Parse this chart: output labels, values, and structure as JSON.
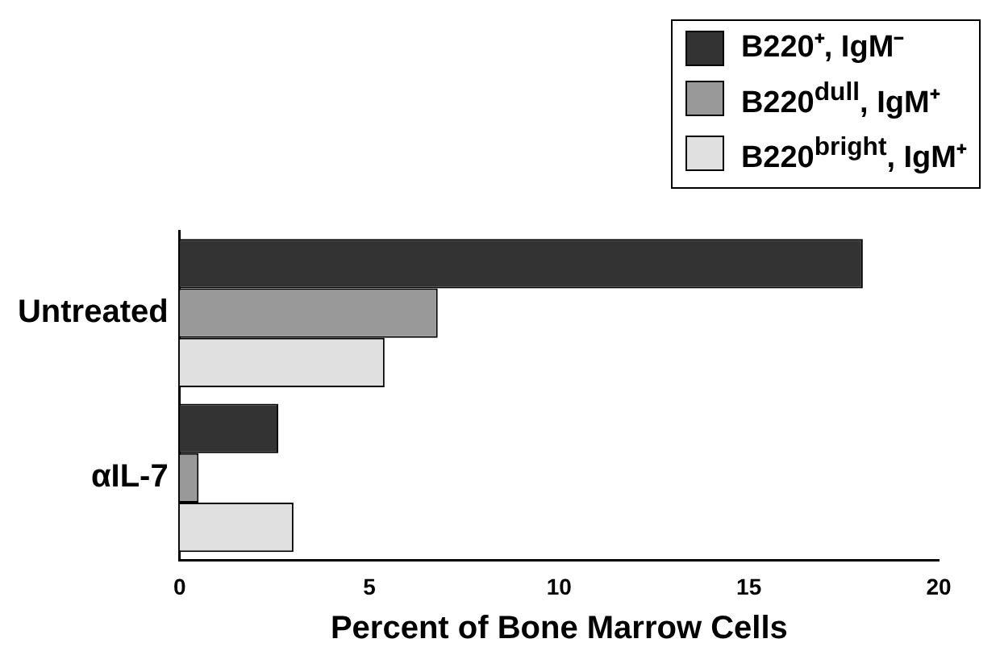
{
  "chart_data": {
    "type": "bar",
    "orientation": "horizontal",
    "xlabel": "Percent of Bone Marrow Cells",
    "categories": [
      "Untreated",
      "αIL-7"
    ],
    "series": [
      {
        "name": "B220⁺, IgM⁻",
        "color": "#333333",
        "values": [
          18.0,
          2.6
        ]
      },
      {
        "name": "B220$^{dull}$, IgM⁺",
        "color": "#999999",
        "values": [
          6.8,
          0.5
        ]
      },
      {
        "name": "B220$^{bright}$, IgM⁺",
        "color": "#e0e0e0",
        "values": [
          5.4,
          3.0
        ]
      }
    ],
    "xlim": [
      0,
      20
    ],
    "xticks": [
      0,
      5,
      10,
      15,
      20
    ],
    "grid": false,
    "legend": "top right"
  }
}
